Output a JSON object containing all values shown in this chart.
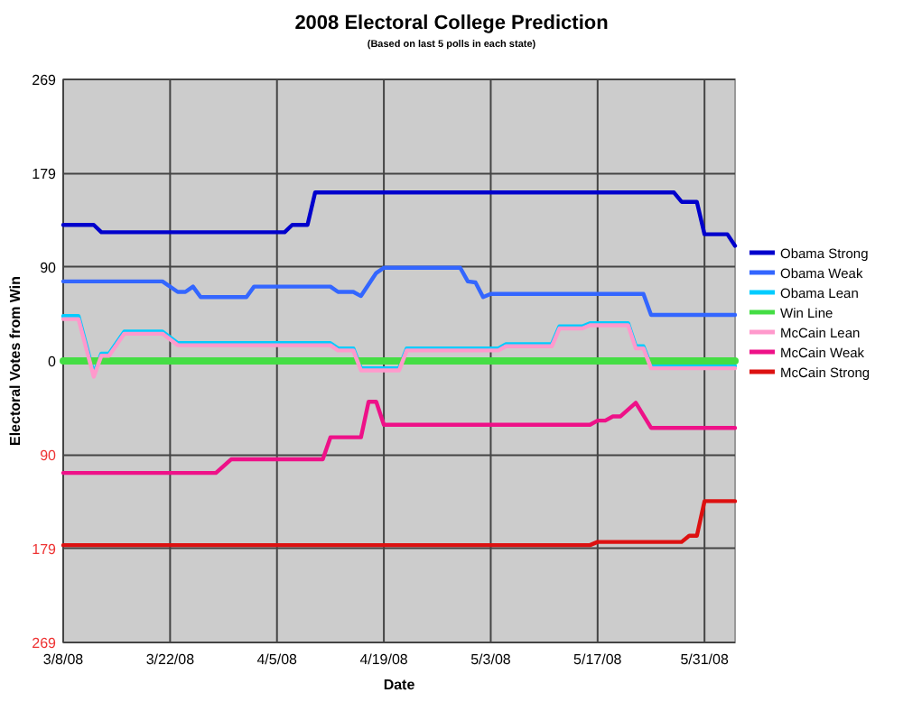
{
  "chart_data": {
    "type": "line",
    "title": "2008 Electoral College Prediction",
    "subtitle": "(Based on last 5 polls in each state)",
    "xlabel": "Date",
    "ylabel": "Electoral Votes from Win",
    "xlim": [
      "2008-03-08",
      "2008-06-04"
    ],
    "xticks": [
      {
        "value": "2008-03-08",
        "label": "3/8/08"
      },
      {
        "value": "2008-03-22",
        "label": "3/22/08"
      },
      {
        "value": "2008-04-05",
        "label": "4/5/08"
      },
      {
        "value": "2008-04-19",
        "label": "4/19/08"
      },
      {
        "value": "2008-05-03",
        "label": "5/3/08"
      },
      {
        "value": "2008-05-17",
        "label": "5/17/08"
      },
      {
        "value": "2008-05-31",
        "label": "5/31/08"
      }
    ],
    "ylim": [
      -269,
      269
    ],
    "yticks": [
      {
        "value": -269,
        "label": "269"
      },
      {
        "value": -179,
        "label": "179"
      },
      {
        "value": -90,
        "label": "90"
      },
      0,
      90,
      179,
      269
    ],
    "grid": true,
    "legend": "right",
    "line_style": "solid",
    "series": [
      {
        "name": "Obama Strong",
        "color": "#0000cc",
        "x": [
          "2008-03-08",
          "2008-03-12",
          "2008-03-13",
          "2008-04-06",
          "2008-04-07",
          "2008-04-09",
          "2008-04-10",
          "2008-05-27",
          "2008-05-28",
          "2008-05-30",
          "2008-05-31",
          "2008-06-03",
          "2008-06-04"
        ],
        "values": [
          130,
          130,
          123,
          123,
          130,
          130,
          161,
          161,
          152,
          152,
          121,
          121,
          110
        ]
      },
      {
        "name": "Obama Weak",
        "color": "#3366ff",
        "x": [
          "2008-03-08",
          "2008-03-21",
          "2008-03-23",
          "2008-03-24",
          "2008-03-25",
          "2008-03-26",
          "2008-04-01",
          "2008-04-02",
          "2008-04-12",
          "2008-04-13",
          "2008-04-15",
          "2008-04-16",
          "2008-04-18",
          "2008-04-19",
          "2008-04-29",
          "2008-04-30",
          "2008-05-01",
          "2008-05-02",
          "2008-05-03",
          "2008-05-23",
          "2008-05-24",
          "2008-06-04"
        ],
        "values": [
          76,
          76,
          66,
          66,
          71,
          61,
          61,
          71,
          71,
          66,
          66,
          62,
          84,
          89,
          89,
          76,
          75,
          61,
          64,
          64,
          44,
          44
        ]
      },
      {
        "name": "Obama Lean",
        "color": "#00ccff",
        "x": [
          "2008-03-08",
          "2008-03-10",
          "2008-03-12",
          "2008-03-13",
          "2008-03-14",
          "2008-03-16",
          "2008-03-21",
          "2008-03-23",
          "2008-04-12",
          "2008-04-13",
          "2008-04-15",
          "2008-04-16",
          "2008-04-21",
          "2008-04-22",
          "2008-05-04",
          "2008-05-05",
          "2008-05-11",
          "2008-05-12",
          "2008-05-15",
          "2008-05-16",
          "2008-05-21",
          "2008-05-22",
          "2008-05-23",
          "2008-05-24",
          "2008-06-04"
        ],
        "values": [
          43,
          43,
          -12,
          7,
          7,
          28,
          28,
          17,
          17,
          12,
          12,
          -7,
          -7,
          12,
          12,
          16,
          16,
          33,
          33,
          36,
          36,
          14,
          14,
          -5,
          -5
        ]
      },
      {
        "name": "Win Line",
        "color": "#44dd44",
        "x": [
          "2008-03-08",
          "2008-06-04"
        ],
        "values": [
          0,
          0
        ]
      },
      {
        "name": "McCain Lean",
        "color": "#ff99cc",
        "x": [
          "2008-03-08",
          "2008-03-10",
          "2008-03-12",
          "2008-03-13",
          "2008-03-14",
          "2008-03-16",
          "2008-03-21",
          "2008-03-23",
          "2008-04-12",
          "2008-04-13",
          "2008-04-15",
          "2008-04-16",
          "2008-04-21",
          "2008-04-22",
          "2008-05-04",
          "2008-05-05",
          "2008-05-11",
          "2008-05-12",
          "2008-05-15",
          "2008-05-16",
          "2008-05-21",
          "2008-05-22",
          "2008-05-23",
          "2008-05-24",
          "2008-06-04"
        ],
        "values": [
          40,
          40,
          -15,
          5,
          5,
          26,
          26,
          15,
          15,
          10,
          10,
          -9,
          -9,
          10,
          10,
          14,
          14,
          31,
          31,
          34,
          34,
          12,
          12,
          -7,
          -7
        ]
      },
      {
        "name": "McCain Weak",
        "color": "#ee1188",
        "x": [
          "2008-03-08",
          "2008-03-28",
          "2008-03-30",
          "2008-04-11",
          "2008-04-12",
          "2008-04-16",
          "2008-04-17",
          "2008-04-18",
          "2008-04-19",
          "2008-05-16",
          "2008-05-17",
          "2008-05-18",
          "2008-05-19",
          "2008-05-20",
          "2008-05-22",
          "2008-05-24",
          "2008-06-04"
        ],
        "values": [
          -107,
          -107,
          -94,
          -94,
          -73,
          -73,
          -39,
          -39,
          -61,
          -61,
          -57,
          -57,
          -53,
          -53,
          -40,
          -64,
          -64
        ]
      },
      {
        "name": "McCain Strong",
        "color": "#dd1111",
        "x": [
          "2008-03-08",
          "2008-05-16",
          "2008-05-17",
          "2008-05-28",
          "2008-05-29",
          "2008-05-30",
          "2008-05-31",
          "2008-06-04"
        ],
        "values": [
          -176,
          -176,
          -173,
          -173,
          -167,
          -167,
          -134,
          -134
        ]
      }
    ]
  }
}
